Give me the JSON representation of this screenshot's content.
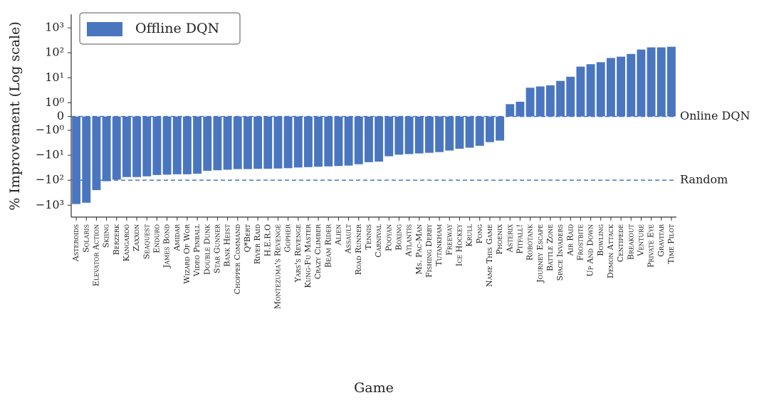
{
  "chart_data": {
    "type": "bar",
    "yscale": "symlog",
    "ylabel": "% Improvement (Log scale)",
    "xlabel": "Game",
    "categories": [
      "Asteroids",
      "Solaris",
      "Elevator Action",
      "Skiing",
      "Berzerk",
      "Kangaroo",
      "Zaxxon",
      "Seaquest",
      "Enduro",
      "James Bond",
      "Amidar",
      "Wizard Of Wor",
      "Video Pinball",
      "Double Dunk",
      "Star Gunner",
      "Bank Heist",
      "Chopper Command",
      "Q*Bert",
      "River Raid",
      "H.E.R.O",
      "Montezuma's Revenge",
      "Gopher",
      "Yars's Revenge",
      "Kung-Fu Master",
      "Crazy Climber",
      "Beam Rider",
      "Alien",
      "Assault",
      "Road Runner",
      "Tennis",
      "Carnival",
      "Pooyan",
      "Boxing",
      "Atlantis",
      "Ms. Pac-Man",
      "Fishing Derby",
      "Tutankham",
      "Freeway",
      "Ice Hockey",
      "Krull",
      "Pong",
      "Name This Game",
      "Phoenix",
      "Asterix",
      "Pitfall!",
      "Robotank",
      "Journey Escape",
      "Battle Zone",
      "Space Invaders",
      "Air Raid",
      "Frostbite",
      "Up And Down",
      "Bowling",
      "Demon Attack",
      "Centipede",
      "Breakout",
      "Venture",
      "Private Eye",
      "Gravitar",
      "Time Pilot"
    ],
    "series": [
      {
        "name": "Offline DQN",
        "color": "#4a76c0",
        "values": [
          -900,
          -800,
          -250,
          -110,
          -95,
          -75,
          -75,
          -70,
          -62,
          -60,
          -58,
          -58,
          -55,
          -42,
          -40,
          -38,
          -36,
          -36,
          -35,
          -35,
          -34,
          -33,
          -31,
          -30,
          -29,
          -28,
          -27,
          -26,
          -23,
          -19,
          -18,
          -11,
          -9.5,
          -9,
          -8.5,
          -8,
          -7.5,
          -6.5,
          -5.5,
          -5,
          -4.2,
          -3,
          -2.6,
          0.9,
          1.1,
          4,
          4.5,
          5,
          7.5,
          11,
          28,
          35,
          42,
          62,
          70,
          90,
          135,
          165,
          165,
          175
        ]
      }
    ],
    "ylim": [
      -3000,
      3500
    ],
    "yticks": [
      {
        "value": 1000,
        "label": "10³"
      },
      {
        "value": 100,
        "label": "10²"
      },
      {
        "value": 10,
        "label": "10¹"
      },
      {
        "value": 1,
        "label": "10⁰"
      },
      0,
      {
        "value": -1,
        "label": "−10⁰"
      },
      {
        "value": -10,
        "label": "−10¹"
      },
      {
        "value": -100,
        "label": "−10²"
      },
      {
        "value": -1000,
        "label": "−10³"
      }
    ],
    "reference_lines": [
      {
        "label": "Online DQN",
        "value": 0,
        "color": "#4a76c0"
      },
      {
        "label": "Random",
        "value": -100,
        "color": "#4a76c0"
      }
    ],
    "legend": "upper left"
  }
}
